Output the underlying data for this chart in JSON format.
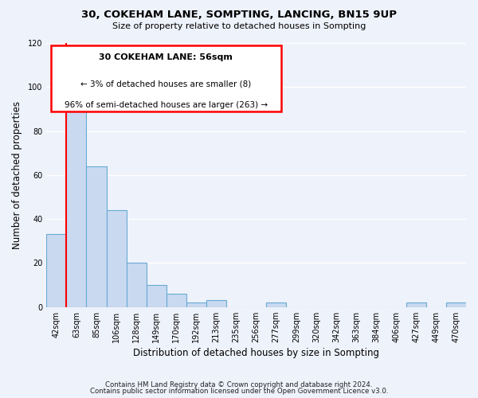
{
  "title": "30, COKEHAM LANE, SOMPTING, LANCING, BN15 9UP",
  "subtitle": "Size of property relative to detached houses in Sompting",
  "xlabel": "Distribution of detached houses by size in Sompting",
  "ylabel": "Number of detached properties",
  "bar_color": "#c8d9f0",
  "bar_edge_color": "#6aaad4",
  "background_color": "#eef2fb",
  "grid_color": "#ffffff",
  "categories": [
    "42sqm",
    "63sqm",
    "85sqm",
    "106sqm",
    "128sqm",
    "149sqm",
    "170sqm",
    "192sqm",
    "213sqm",
    "235sqm",
    "256sqm",
    "277sqm",
    "299sqm",
    "320sqm",
    "342sqm",
    "363sqm",
    "384sqm",
    "406sqm",
    "427sqm",
    "449sqm",
    "470sqm"
  ],
  "values": [
    33,
    90,
    64,
    44,
    20,
    10,
    6,
    2,
    3,
    0,
    0,
    2,
    0,
    0,
    0,
    0,
    0,
    0,
    2,
    0,
    2
  ],
  "ylim": [
    0,
    120
  ],
  "yticks": [
    0,
    20,
    40,
    60,
    80,
    100,
    120
  ],
  "red_line_x": 0.5,
  "annotation_title": "30 COKEHAM LANE: 56sqm",
  "annotation_line1": "← 3% of detached houses are smaller (8)",
  "annotation_line2": "96% of semi-detached houses are larger (263) →",
  "footnote1": "Contains HM Land Registry data © Crown copyright and database right 2024.",
  "footnote2": "Contains public sector information licensed under the Open Government Licence v3.0."
}
